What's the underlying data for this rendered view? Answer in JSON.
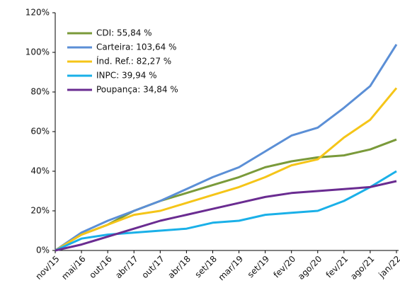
{
  "chart_data": {
    "type": "line",
    "categories": [
      "nov/15",
      "mai/16",
      "out/16",
      "abr/17",
      "out/17",
      "abr/18",
      "set/18",
      "mar/19",
      "set/19",
      "fev/20",
      "ago/20",
      "fev/21",
      "ago/21",
      "jan/22"
    ],
    "series": [
      {
        "name": "CDI: 55,84 %",
        "color": "#7a9a3a",
        "values": [
          0,
          8,
          13,
          20,
          25,
          29,
          33,
          37,
          42,
          45,
          47,
          48,
          51,
          56
        ]
      },
      {
        "name": "Carteira: 103,64 %",
        "color": "#5b8fd6",
        "values": [
          0,
          9,
          15,
          20,
          25,
          31,
          37,
          42,
          50,
          58,
          62,
          72,
          83,
          104
        ]
      },
      {
        "name": "Índ. Ref.: 82,27 %",
        "color": "#f5c518",
        "values": [
          0,
          8,
          13,
          18,
          20,
          24,
          28,
          32,
          37,
          43,
          46,
          57,
          66,
          82
        ]
      },
      {
        "name": "INPC: 39,94 %",
        "color": "#1ab0e8",
        "values": [
          0,
          6,
          8,
          9,
          10,
          11,
          14,
          15,
          18,
          19,
          20,
          25,
          32,
          40
        ]
      },
      {
        "name": "Poupança: 34,84 %",
        "color": "#6a2c91",
        "values": [
          0,
          3,
          7,
          11,
          15,
          18,
          21,
          24,
          27,
          29,
          30,
          31,
          32,
          35
        ]
      }
    ],
    "ylim": [
      0,
      120
    ],
    "yticks": [
      {
        "value": 0,
        "label": "0%"
      },
      {
        "value": 20,
        "label": "20%"
      },
      {
        "value": 40,
        "label": "40%"
      },
      {
        "value": 60,
        "label": "60%"
      },
      {
        "value": 80,
        "label": "80%"
      },
      {
        "value": 100,
        "label": "100%"
      },
      {
        "value": 120,
        "label": "120%"
      }
    ],
    "grid": false,
    "legend": "upper left"
  }
}
